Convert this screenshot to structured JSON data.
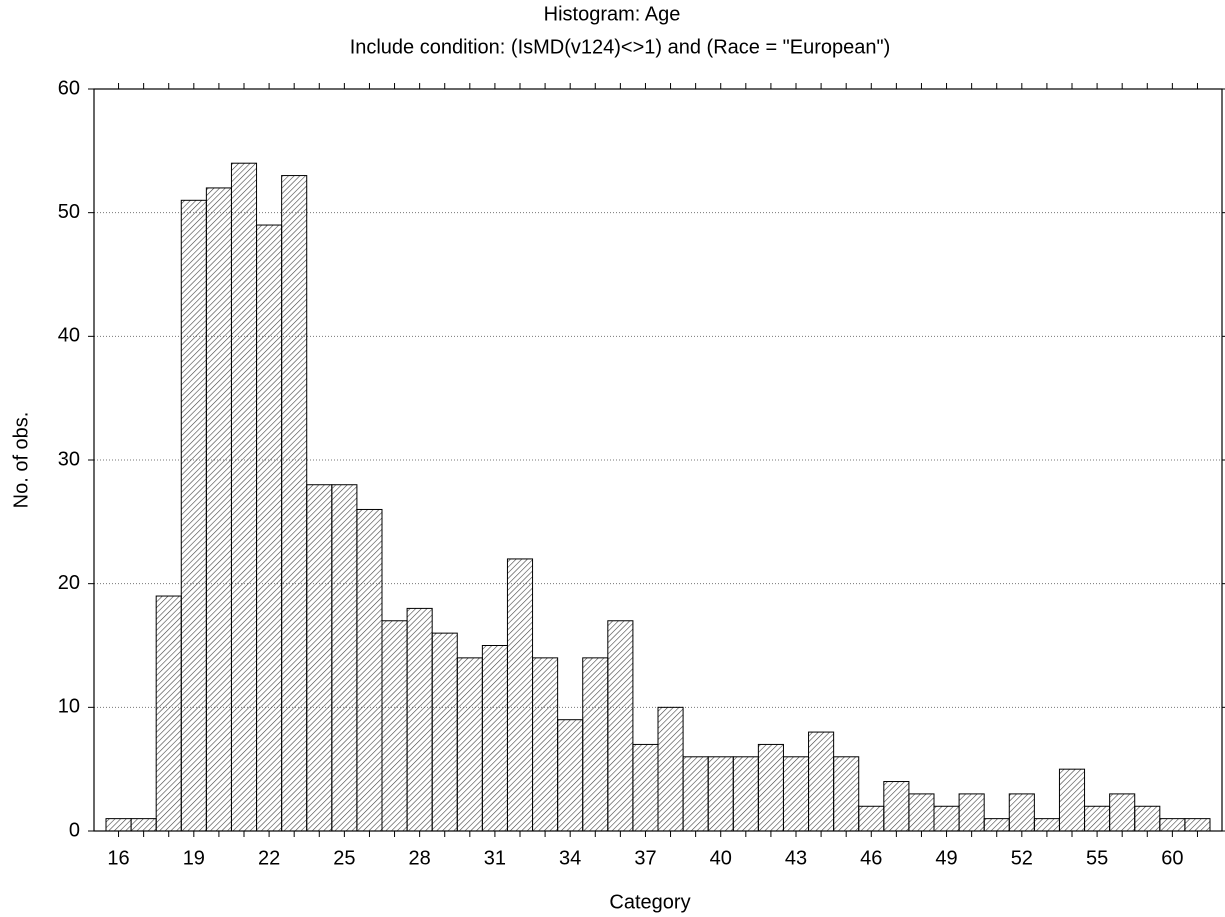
{
  "chart_data": {
    "type": "histogram",
    "title": "Histogram: Age",
    "subtitle": "Include condition: (IsMD(v124)<>1)  and (Race = \"European\")",
    "x_label": "Category",
    "y_label": "No. of obs.",
    "categories": [
      "16",
      null,
      null,
      "19",
      null,
      null,
      "22",
      null,
      null,
      "25",
      null,
      null,
      "28",
      null,
      null,
      "31",
      null,
      null,
      "34",
      null,
      null,
      "37",
      null,
      null,
      "40",
      null,
      null,
      "43",
      null,
      null,
      "46",
      null,
      null,
      "49",
      null,
      null,
      "52",
      null,
      null,
      "55",
      null,
      null,
      "60",
      null
    ],
    "values": [
      1,
      1,
      19,
      51,
      52,
      54,
      49,
      53,
      28,
      28,
      26,
      17,
      18,
      16,
      14,
      15,
      22,
      14,
      9,
      14,
      17,
      7,
      10,
      6,
      6,
      6,
      7,
      6,
      8,
      6,
      2,
      4,
      3,
      2,
      3,
      1,
      3,
      1,
      5,
      2,
      3,
      2,
      1,
      1
    ],
    "ylim": [
      0,
      60
    ],
    "yticks": [
      0,
      10,
      20,
      30,
      40,
      50,
      60
    ],
    "grid": true,
    "color": "#ffffff"
  }
}
